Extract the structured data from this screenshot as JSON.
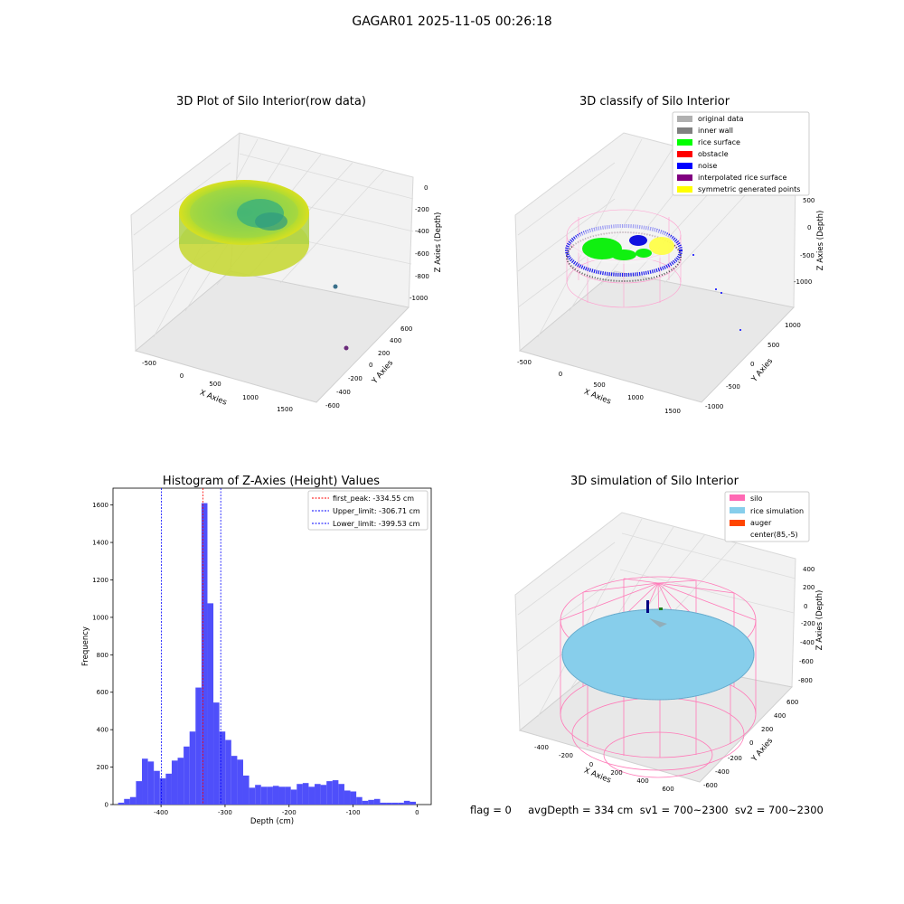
{
  "figure_title": "GAGAR01 2025-11-05 00:26:18",
  "status_line": "flag = 0     avgDepth = 334 cm  sv1 = 700~2300  sv2 = 700~2300",
  "colors": {
    "histogram_bar": "#4f4ffa",
    "first_peak_line": "#ff0000",
    "limit_lines": "#0000ff",
    "silo_wire": "#ff69b4",
    "rice_sim": "#87ceeb",
    "auger": "#ff4500",
    "rice_surface": "#00ff00",
    "noise": "#0000ff",
    "inner_wall": "#808080",
    "original_data": "#b0b0b0",
    "obstacle": "#ff0000",
    "interpolated": "#800080",
    "symmetric": "#ffff00"
  },
  "chart_data": [
    {
      "type": "scatter",
      "title": "3D Plot of Silo Interior(row data)",
      "xlabel": "X Axies",
      "ylabel": "Y Axies",
      "zlabel": "Z Axies (Depth)",
      "x_ticks": [
        "-500",
        "0",
        "500",
        "1000",
        "1500"
      ],
      "y_ticks": [
        "-600",
        "-400",
        "-200",
        "0",
        "200",
        "400",
        "600"
      ],
      "z_ticks": [
        "-1000",
        "-800",
        "-600",
        "-400",
        "-200",
        "0"
      ],
      "xlim": [
        -600,
        1600
      ],
      "ylim": [
        -650,
        650
      ],
      "zlim": [
        -1050,
        50
      ],
      "colormap": "viridis"
    },
    {
      "type": "scatter",
      "title": "3D classify of Silo Interior",
      "xlabel": "X Axies",
      "ylabel": "Y Axies",
      "zlabel": "Z Axies (Depth)",
      "x_ticks": [
        "-500",
        "0",
        "500",
        "1000",
        "1500"
      ],
      "y_ticks": [
        "-1000",
        "-500",
        "0",
        "500",
        "1000"
      ],
      "z_ticks": [
        "-1000",
        "-500",
        "0",
        "500"
      ],
      "xlim": [
        -600,
        1600
      ],
      "ylim": [
        -1100,
        1100
      ],
      "zlim": [
        -1100,
        600
      ],
      "legend_placement": "upper-right",
      "legend": [
        {
          "label": "original data",
          "color": "#b0b0b0"
        },
        {
          "label": "inner wall",
          "color": "#808080"
        },
        {
          "label": "rice surface",
          "color": "#00ff00"
        },
        {
          "label": "obstacle",
          "color": "#ff0000"
        },
        {
          "label": "noise",
          "color": "#0000ff"
        },
        {
          "label": "interpolated rice surface",
          "color": "#800080"
        },
        {
          "label": "symmetric generated points",
          "color": "#ffff00"
        }
      ]
    },
    {
      "type": "bar",
      "title": "Histogram of Z-Axies (Height) Values",
      "xlabel": "Depth (cm)",
      "ylabel": "Frequency",
      "xlim": [
        -475,
        22
      ],
      "ylim": [
        0,
        1690
      ],
      "x_ticks": [
        -400,
        -300,
        -200,
        -100,
        0
      ],
      "y_ticks": [
        0,
        200,
        400,
        600,
        800,
        1000,
        1200,
        1400,
        1600
      ],
      "bin_start": -467,
      "bin_width": 9.3,
      "values": [
        10,
        30,
        40,
        125,
        245,
        230,
        180,
        140,
        165,
        235,
        250,
        310,
        390,
        625,
        1610,
        1075,
        545,
        390,
        345,
        260,
        240,
        155,
        90,
        105,
        95,
        95,
        100,
        95,
        95,
        80,
        110,
        115,
        95,
        110,
        105,
        125,
        130,
        110,
        75,
        70,
        40,
        20,
        25,
        30,
        10,
        10,
        10,
        10,
        20,
        15
      ],
      "vlines": [
        {
          "label": "first_peak: -334.55 cm",
          "x": -334.55,
          "color": "#ff0000"
        },
        {
          "label": "Upper_limit: -306.71 cm",
          "x": -306.71,
          "color": "#0000ff"
        },
        {
          "label": "Lower_limit: -399.53 cm",
          "x": -399.53,
          "color": "#0000ff"
        }
      ],
      "legend_placement": "upper-right"
    },
    {
      "type": "scatter",
      "title": "3D simulation of Silo Interior",
      "xlabel": "X Axies",
      "ylabel": "Y Axies",
      "zlabel": "Z Axies (Depth)",
      "x_ticks": [
        "-400",
        "-200",
        "0",
        "200",
        "400",
        "600"
      ],
      "y_ticks": [
        "-600",
        "-400",
        "-200",
        "0",
        "200",
        "400",
        "600"
      ],
      "z_ticks": [
        "-800",
        "-600",
        "-400",
        "-200",
        "0",
        "200",
        "400"
      ],
      "xlim": [
        -550,
        700
      ],
      "ylim": [
        -700,
        700
      ],
      "zlim": [
        -950,
        450
      ],
      "legend_placement": "upper-right",
      "legend": [
        {
          "label": "silo",
          "color": "#ff69b4"
        },
        {
          "label": "rice simulation",
          "color": "#87ceeb"
        },
        {
          "label": "auger",
          "color": "#ff4500"
        },
        {
          "label": "center(85,-5)",
          "color": ""
        }
      ]
    }
  ]
}
